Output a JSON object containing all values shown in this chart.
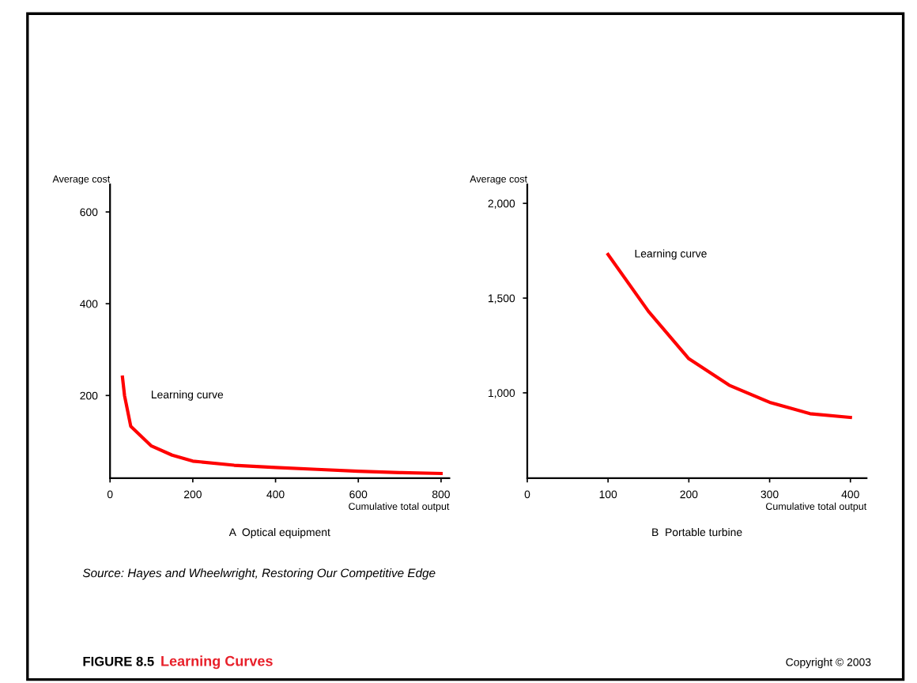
{
  "chart_data": [
    {
      "type": "line",
      "title": "Learning Curves",
      "subtitle": "A  Optical equipment",
      "xlabel": "Cumulative total output",
      "ylabel": "Average cost",
      "series": [
        {
          "color": "#ff0000",
          "x": [
            30,
            35,
            50,
            100,
            150,
            200,
            300,
            400,
            500,
            600,
            700,
            800
          ],
          "values": [
            240,
            200,
            133,
            90,
            70,
            57,
            48,
            43,
            39,
            35,
            32,
            30
          ]
        }
      ],
      "xlim": [
        0,
        820
      ],
      "xticks": [
        0,
        200,
        400,
        600,
        800
      ],
      "ylim": [
        20,
        660
      ],
      "yticks": [
        200,
        400,
        600
      ],
      "annotations": [
        {
          "text": "Learning curve",
          "x": 35,
          "y": 200
        },
        "Source: Hayes and Wheelwright, Restoring Our Competitive Edge",
        "FIGURE 8.5",
        "Copyright © 2003"
      ],
      "grid": false,
      "legend": false,
      "marker": "none",
      "line_style": "solid"
    },
    {
      "type": "line",
      "subtitle": "B  Portable turbine",
      "xlabel": "Cumulative total output",
      "ylabel": "Average cost",
      "series": [
        {
          "color": "#ff0000",
          "x": [
            100,
            150,
            200,
            250,
            300,
            350,
            400
          ],
          "values": [
            1730,
            1430,
            1180,
            1040,
            950,
            890,
            870
          ]
        }
      ],
      "xlim": [
        0,
        420
      ],
      "xticks": [
        0,
        100,
        200,
        300,
        400
      ],
      "ylim": [
        550,
        2100
      ],
      "yticks": [
        {
          "value": 1000,
          "label": "1,000"
        },
        {
          "value": 1500,
          "label": "1,500"
        },
        {
          "value": 2000,
          "label": "2,000"
        }
      ],
      "annotations": [
        {
          "text": "Learning curve",
          "x": 100,
          "y": 1730
        }
      ],
      "grid": false,
      "legend": false,
      "marker": "none",
      "line_style": "solid"
    }
  ]
}
